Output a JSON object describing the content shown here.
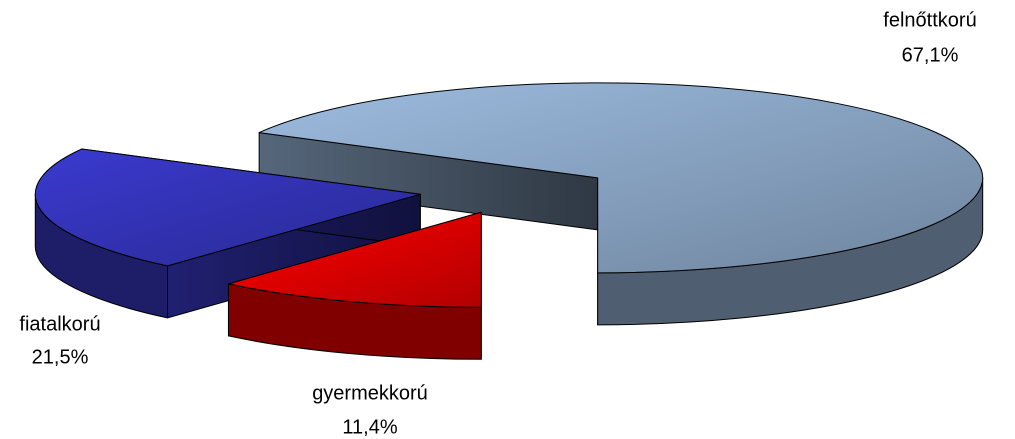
{
  "chart_data": {
    "type": "pie",
    "categories": [
      "felnőttkorú",
      "gyermekkorú",
      "fiatalkorú"
    ],
    "values": [
      67.1,
      11.4,
      21.5
    ],
    "value_labels": [
      "67,1%",
      "11,4%",
      "21,5%"
    ],
    "colors": [
      "#9dbce0",
      "#ff0000",
      "#3a3ad0"
    ]
  }
}
